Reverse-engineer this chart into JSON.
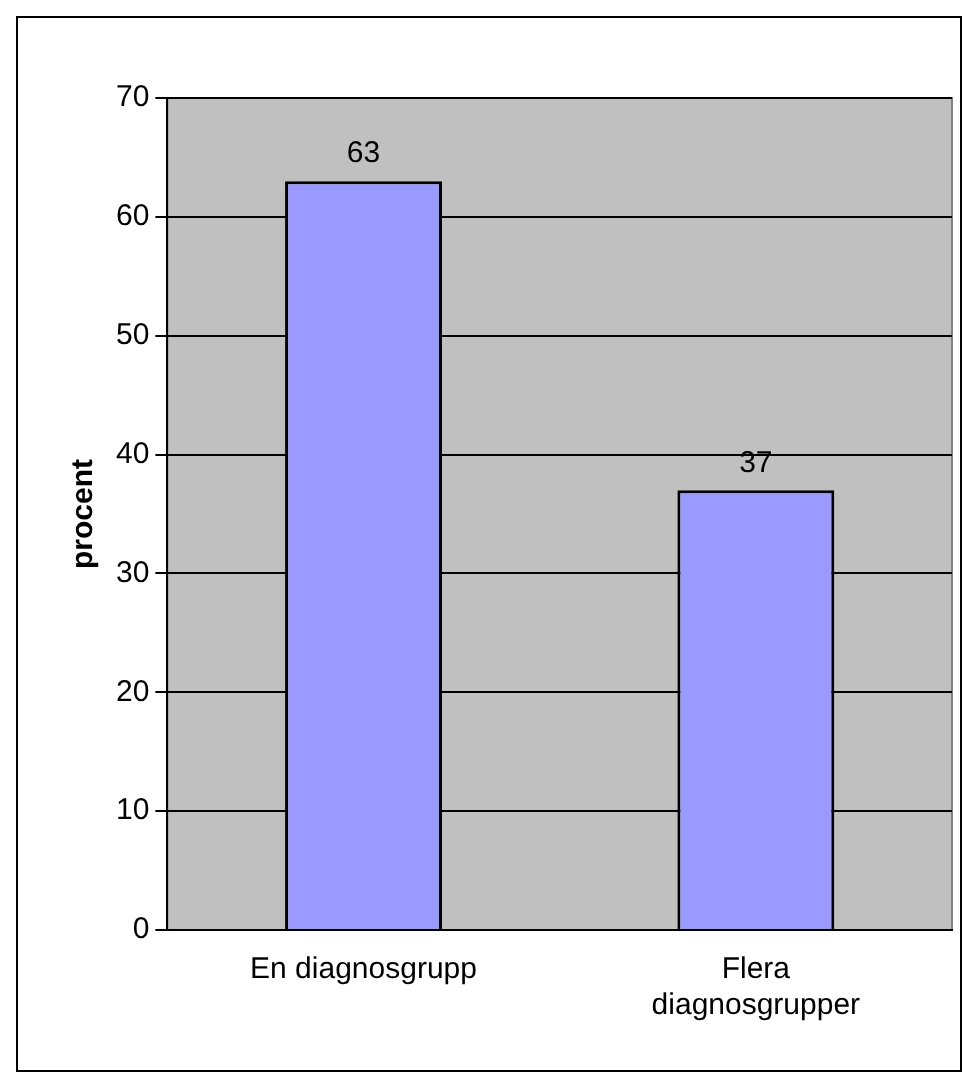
{
  "chart_data": {
    "type": "bar",
    "ylabel": "procent",
    "categories": [
      "En diagnosgrupp",
      "Flera diagnosgrupper"
    ],
    "values": [
      63,
      37
    ],
    "color": "#9999ff",
    "ylim": [
      0,
      70
    ],
    "yticks": [
      0,
      10,
      20,
      30,
      40,
      50,
      60,
      70
    ],
    "grid": "y",
    "data_labels": true,
    "legend": false
  }
}
